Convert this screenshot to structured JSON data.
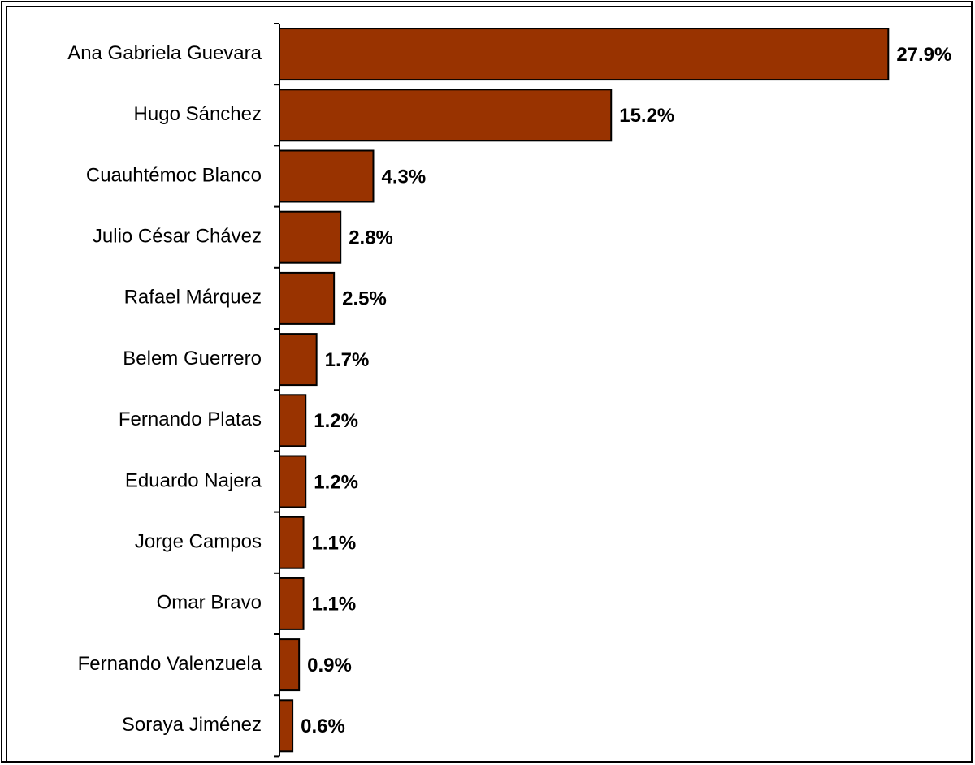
{
  "chart_data": {
    "type": "bar",
    "orientation": "horizontal",
    "categories": [
      "Ana Gabriela Guevara",
      "Hugo Sánchez",
      "Cuauhtémoc Blanco",
      "Julio César Chávez",
      "Rafael Márquez",
      "Belem Guerrero",
      "Fernando Platas",
      "Eduardo Najera",
      "Jorge Campos",
      "Omar Bravo",
      "Fernando Valenzuela",
      "Soraya Jiménez"
    ],
    "values": [
      27.9,
      15.2,
      4.3,
      2.8,
      2.5,
      1.7,
      1.2,
      1.2,
      1.1,
      1.1,
      0.9,
      0.6
    ],
    "value_labels": [
      "27.9%",
      "15.2%",
      "4.3%",
      "2.8%",
      "2.5%",
      "1.7%",
      "1.2%",
      "1.2%",
      "1.1%",
      "1.1%",
      "0.9%",
      "0.6%"
    ],
    "title": "",
    "xlabel": "",
    "ylabel": "",
    "xlim": [
      0,
      28
    ],
    "grid": false,
    "legend": "none",
    "bar_color": "#993300",
    "bar_edge_color": "#000000"
  }
}
